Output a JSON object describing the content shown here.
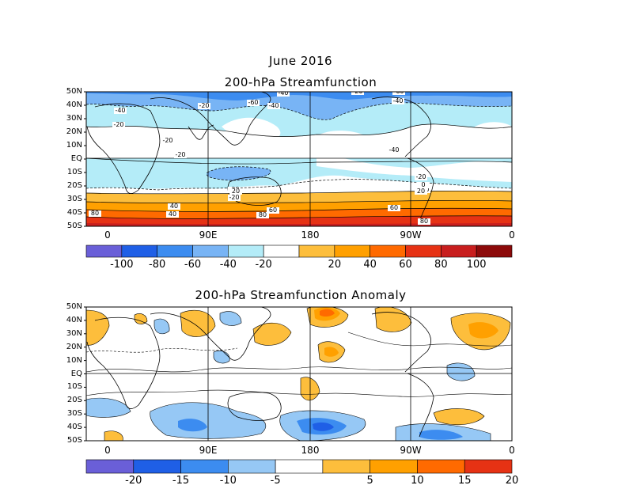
{
  "title_month": "June 2016",
  "panel1": {
    "title": "200-hPa Streamfunction",
    "lat_labels": [
      "50N",
      "40N",
      "30N",
      "20N",
      "10N",
      "EQ",
      "10S",
      "20S",
      "30S",
      "40S",
      "50S"
    ],
    "lon_labels": [
      "0",
      "90E",
      "180",
      "90W",
      "0"
    ],
    "colorbar_labels": [
      "-100",
      "-80",
      "-60",
      "-40",
      "-20",
      "20",
      "40",
      "60",
      "80",
      "100"
    ],
    "colorbar_colors": [
      "#6a5fd8",
      "#1f5fe6",
      "#3c8cf0",
      "#78b4f5",
      "#b4ecf8",
      "#ffffff",
      "#fdbe3c",
      "#ffa000",
      "#ff6a00",
      "#e63214",
      "#c81e1e",
      "#8c0a0a"
    ],
    "contour_labels": [
      "-20",
      "-40",
      "-60",
      "-40",
      "-40",
      "-20",
      "-20",
      "-20",
      "-40",
      "-20",
      "-20",
      "-20",
      "-20",
      "0",
      "20",
      "20",
      "40",
      "40",
      "60",
      "60",
      "80",
      "80",
      "80",
      "-60",
      "-40",
      "-20"
    ]
  },
  "panel2": {
    "title": "200-hPa Streamfunction Anomaly",
    "lat_labels": [
      "50N",
      "40N",
      "30N",
      "20N",
      "10N",
      "EQ",
      "10S",
      "20S",
      "30S",
      "40S",
      "50S"
    ],
    "lon_labels": [
      "0",
      "90E",
      "180",
      "90W",
      "0"
    ],
    "colorbar_labels": [
      "-20",
      "-15",
      "-10",
      "-5",
      "5",
      "10",
      "15",
      "20"
    ],
    "colorbar_colors": [
      "#6a5fd8",
      "#1f5fe6",
      "#3c8cf0",
      "#96c8f5",
      "#ffffff",
      "#fdbe3c",
      "#ffa000",
      "#ff6a00",
      "#e63214"
    ]
  }
}
